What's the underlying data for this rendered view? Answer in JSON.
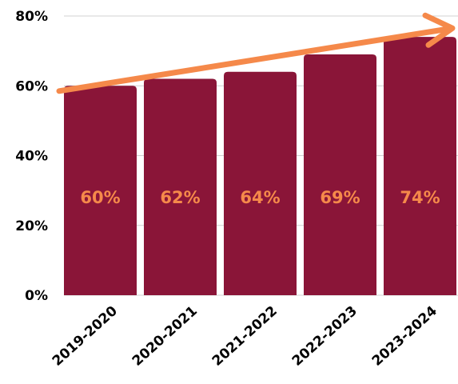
{
  "chart_data": {
    "type": "bar",
    "categories": [
      "2019-2020",
      "2020-2021",
      "2021-2022",
      "2022-2023",
      "2023-2024"
    ],
    "values": [
      60,
      62,
      64,
      69,
      74
    ],
    "data_labels": [
      "60%",
      "62%",
      "64%",
      "69%",
      "74%"
    ],
    "y_ticks": [
      0,
      20,
      40,
      60,
      80
    ],
    "y_tick_labels": [
      "0%",
      "20%",
      "40%",
      "60%",
      "80%"
    ],
    "ylim": [
      0,
      80
    ],
    "grid": true,
    "trend_arrow": {
      "start_value": 58.5,
      "end_value": 76.5
    },
    "colors": {
      "bar": "#8a1538",
      "data_label": "#f5894a",
      "arrow": "#f5894a",
      "grid": "#d0d0d0"
    }
  }
}
